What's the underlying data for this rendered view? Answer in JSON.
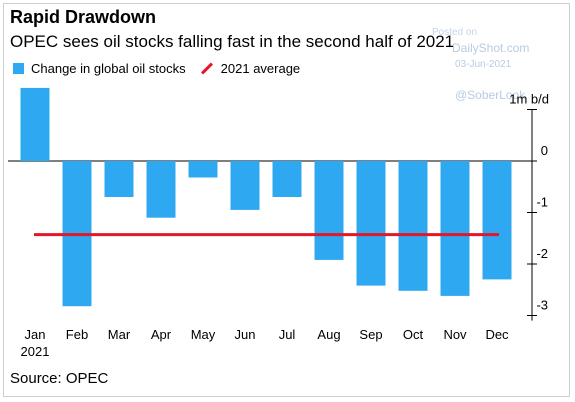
{
  "header": {
    "title": "Rapid Drawdown",
    "subtitle": "OPEC sees oil stocks falling fast in the second half of 2021"
  },
  "legend": {
    "bar_label": "Change in global oil stocks",
    "line_label": "2021 average"
  },
  "watermark": {
    "author": "Posted on",
    "site": "DailyShot.com",
    "date": "03-Jun-2021",
    "handle": "@SoberLook"
  },
  "footer": {
    "source": "Source: OPEC"
  },
  "colors": {
    "bar": "#2ea8f0",
    "average_line": "#e4162a"
  },
  "chart_data": {
    "type": "bar",
    "title": "Rapid Drawdown",
    "subtitle": "OPEC sees oil stocks falling fast in the second half of 2021",
    "ylabel": "1m b/d",
    "categories": [
      "Jan",
      "Feb",
      "Mar",
      "Apr",
      "May",
      "Jun",
      "Jul",
      "Aug",
      "Sep",
      "Oct",
      "Nov",
      "Dec"
    ],
    "x_year_label": "2021",
    "series": [
      {
        "name": "Change in global oil stocks",
        "values": [
          1.42,
          -2.82,
          -0.7,
          -1.1,
          -0.32,
          -0.95,
          -0.7,
          -1.92,
          -2.42,
          -2.52,
          -2.62,
          -2.3
        ]
      }
    ],
    "average": {
      "name": "2021 average",
      "value": -1.43
    },
    "y_ticks": [
      1,
      0,
      -1,
      -2,
      -3
    ],
    "y_tick_labels": [
      "1m b/d",
      "0",
      "-1",
      "-2",
      "-3"
    ],
    "ylim": [
      -3.1,
      1.42
    ],
    "grid": false,
    "legend_position": "top-left",
    "y_axis_side": "right"
  }
}
